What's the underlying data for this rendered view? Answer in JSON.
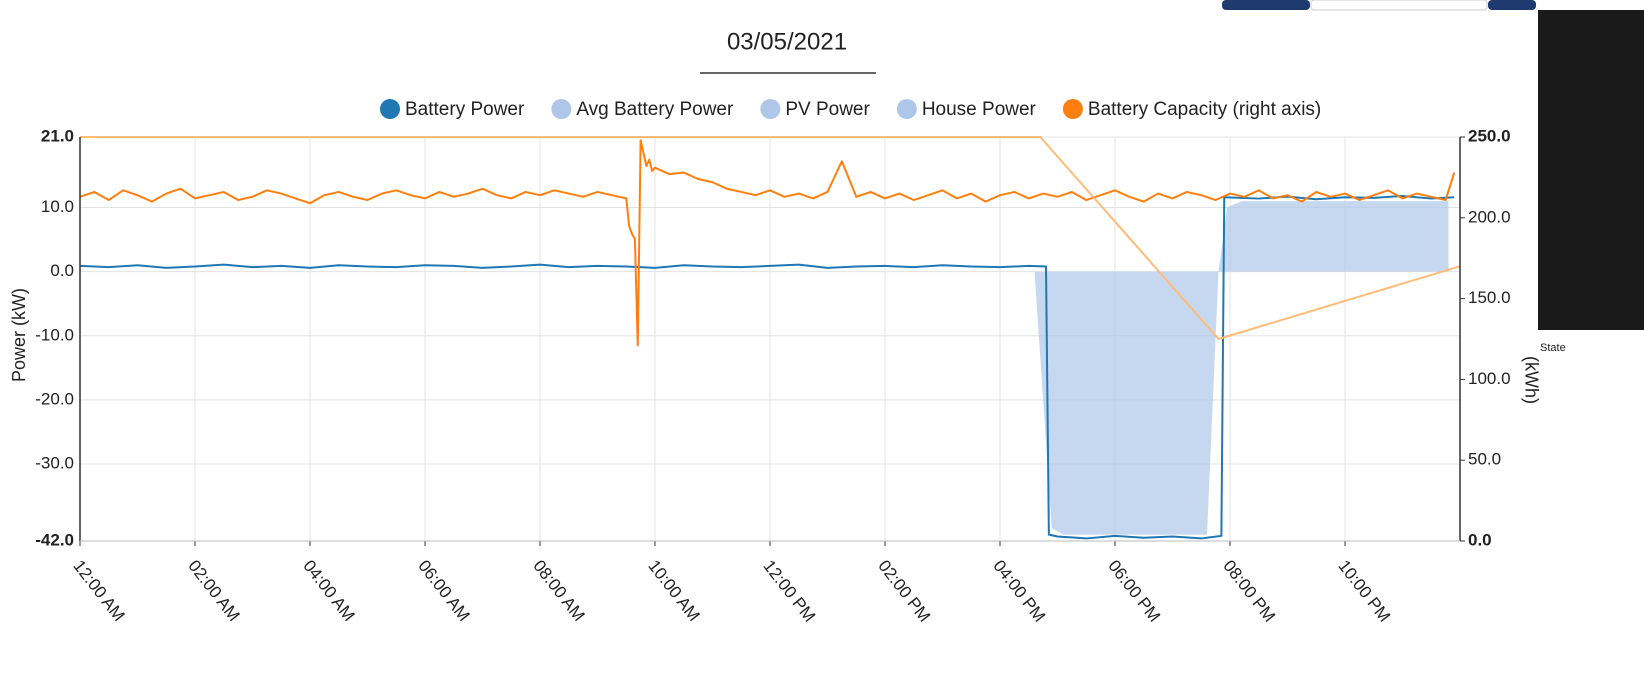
{
  "chart_data": {
    "type": "line",
    "title": "03/05/2021",
    "ylabel": "Power (kW)",
    "y2label": "(kWh)",
    "side_label": "State",
    "grid": true,
    "xlim": [
      0,
      24
    ],
    "xticks": [
      {
        "value": 0,
        "label": "12:00 AM"
      },
      {
        "value": 2,
        "label": "02:00 AM"
      },
      {
        "value": 4,
        "label": "04:00 AM"
      },
      {
        "value": 6,
        "label": "06:00 AM"
      },
      {
        "value": 8,
        "label": "08:00 AM"
      },
      {
        "value": 10,
        "label": "10:00 AM"
      },
      {
        "value": 12,
        "label": "12:00 PM"
      },
      {
        "value": 14,
        "label": "02:00 PM"
      },
      {
        "value": 16,
        "label": "04:00 PM"
      },
      {
        "value": 18,
        "label": "06:00 PM"
      },
      {
        "value": 20,
        "label": "08:00 PM"
      },
      {
        "value": 22,
        "label": "10:00 PM"
      }
    ],
    "ylim": [
      -42,
      21
    ],
    "yticks": [
      {
        "value": -42,
        "label": "-42.0"
      },
      {
        "value": -30,
        "label": "-30.0"
      },
      {
        "value": -20,
        "label": "-20.0"
      },
      {
        "value": -10,
        "label": "-10.0"
      },
      {
        "value": 0,
        "label": "0.0"
      },
      {
        "value": 10,
        "label": "10.0"
      },
      {
        "value": 21,
        "label": "21.0"
      }
    ],
    "y2lim": [
      0,
      250
    ],
    "y2ticks": [
      {
        "value": 0,
        "label": "0.0"
      },
      {
        "value": 50,
        "label": "50.0"
      },
      {
        "value": 100,
        "label": "100.0"
      },
      {
        "value": 150,
        "label": "150.0"
      },
      {
        "value": 200,
        "label": "200.0"
      },
      {
        "value": 250,
        "label": "250.0"
      }
    ],
    "series": [
      {
        "name": "Battery Power",
        "color": "#1f77b4",
        "x": [
          0,
          0.5,
          1,
          1.5,
          2,
          2.5,
          3,
          3.5,
          4,
          4.5,
          5,
          5.5,
          6,
          6.5,
          7,
          7.5,
          8,
          8.5,
          9,
          9.5,
          10,
          10.5,
          11,
          11.5,
          12,
          12.5,
          13,
          13.5,
          14,
          14.5,
          15,
          15.5,
          16,
          16.5,
          16.8,
          16.85,
          17,
          17.5,
          18,
          18.5,
          19,
          19.5,
          19.85,
          19.9,
          20.5,
          21,
          21.5,
          22,
          22.5,
          23,
          23.5,
          23.9
        ],
        "values": [
          0.9,
          0.7,
          1.0,
          0.6,
          0.8,
          1.1,
          0.7,
          0.9,
          0.6,
          1.0,
          0.8,
          0.7,
          1.0,
          0.9,
          0.6,
          0.8,
          1.1,
          0.7,
          0.9,
          0.8,
          0.6,
          1.0,
          0.8,
          0.7,
          0.9,
          1.1,
          0.6,
          0.8,
          0.9,
          0.7,
          1.0,
          0.8,
          0.7,
          0.9,
          0.8,
          -41.0,
          -41.3,
          -41.6,
          -41.2,
          -41.5,
          -41.3,
          -41.6,
          -41.2,
          11.6,
          11.4,
          11.7,
          11.3,
          11.6,
          11.5,
          11.8,
          11.4,
          11.6
        ]
      },
      {
        "name": "Avg Battery Power",
        "color": "#aec7e8",
        "fill": true,
        "x": [
          16.6,
          16.9,
          17.1,
          19.6,
          19.8,
          19.95,
          20.2,
          23.8
        ],
        "values": [
          0,
          -40,
          -41,
          -41,
          0,
          10,
          11,
          11
        ]
      },
      {
        "name": "PV Power",
        "color": "#aec7e8"
      },
      {
        "name": "House Power",
        "color": "#aec7e8"
      },
      {
        "name": "Battery Capacity (right axis)",
        "color": "#ff7f0e",
        "axis": "y2",
        "x": [
          0,
          0.25,
          0.5,
          0.75,
          1,
          1.25,
          1.5,
          1.75,
          2,
          2.25,
          2.5,
          2.75,
          3,
          3.25,
          3.5,
          3.75,
          4,
          4.25,
          4.5,
          4.75,
          5,
          5.25,
          5.5,
          5.75,
          6,
          6.25,
          6.5,
          6.75,
          7,
          7.25,
          7.5,
          7.75,
          8,
          8.25,
          8.5,
          8.75,
          9,
          9.25,
          9.5,
          9.55,
          9.6,
          9.65,
          9.7,
          9.75,
          9.8,
          9.85,
          9.9,
          9.95,
          10,
          10.25,
          10.5,
          10.75,
          11,
          11.25,
          11.5,
          11.75,
          12,
          12.25,
          12.5,
          12.75,
          13,
          13.25,
          13.5,
          13.75,
          14,
          14.25,
          14.5,
          14.75,
          15,
          15.25,
          15.5,
          15.75,
          16,
          16.25,
          16.5,
          16.75,
          17,
          17.25,
          17.5,
          17.75,
          18,
          18.25,
          18.5,
          18.75,
          19,
          19.25,
          19.5,
          19.75,
          20,
          20.25,
          20.5,
          20.75,
          21,
          21.25,
          21.5,
          21.75,
          22,
          22.25,
          22.5,
          22.75,
          23,
          23.25,
          23.5,
          23.75,
          23.9
        ],
        "values": [
          213,
          216,
          211,
          217,
          214,
          210,
          215,
          218,
          212,
          214,
          216,
          211,
          213,
          217,
          215,
          212,
          209,
          214,
          216,
          213,
          211,
          215,
          217,
          214,
          212,
          216,
          213,
          215,
          218,
          214,
          212,
          216,
          214,
          217,
          215,
          213,
          216,
          214,
          212,
          195,
          190,
          187,
          121,
          248,
          240,
          232,
          236,
          229,
          231,
          227,
          228,
          224,
          222,
          218,
          216,
          214,
          217,
          213,
          215,
          212,
          216,
          235,
          213,
          216,
          212,
          215,
          211,
          214,
          217,
          212,
          215,
          210,
          214,
          216,
          212,
          215,
          213,
          216,
          211,
          214,
          217,
          213,
          210,
          215,
          212,
          216,
          214,
          211,
          215,
          213,
          217,
          212,
          214,
          210,
          216,
          213,
          215,
          211,
          214,
          217,
          212,
          215,
          213,
          211,
          228
        ]
      },
      {
        "color": "#ffbb78",
        "axis": "y2",
        "x": [
          0,
          16.7,
          19.8,
          24
        ],
        "values": [
          250,
          250,
          125,
          170
        ]
      }
    ]
  }
}
